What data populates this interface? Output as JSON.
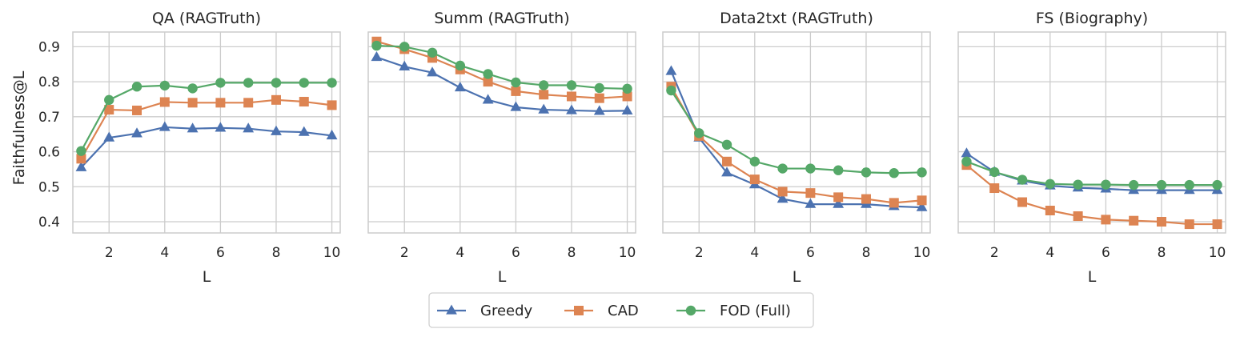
{
  "chart_data": {
    "type": "line",
    "ylabel": "Faithfulness@L",
    "xlabel": "L",
    "x": [
      1,
      2,
      3,
      4,
      5,
      6,
      7,
      8,
      9,
      10
    ],
    "x_ticks": [
      2,
      4,
      6,
      8,
      10
    ],
    "x_tick_labels": [
      "2",
      "4",
      "6",
      "8",
      "10"
    ],
    "y_ticks": [
      0.4,
      0.5,
      0.6,
      0.7,
      0.8,
      0.9
    ],
    "y_tick_labels": [
      "0.4",
      "0.5",
      "0.6",
      "0.7",
      "0.8",
      "0.9"
    ],
    "xlim": [
      0.7,
      10.3
    ],
    "ylim": [
      0.368,
      0.942
    ],
    "grid": true,
    "legend_position": "bottom-center",
    "series_styles": [
      {
        "name": "Greedy",
        "color": "#4c72b0",
        "marker": "triangle"
      },
      {
        "name": "CAD",
        "color": "#dd8452",
        "marker": "square"
      },
      {
        "name": "FOD (Full)",
        "color": "#55a868",
        "marker": "circle"
      }
    ],
    "panels": [
      {
        "title": "QA (RAGTruth)",
        "series": [
          {
            "name": "Greedy",
            "values": [
              0.555,
              0.64,
              0.652,
              0.67,
              0.666,
              0.668,
              0.666,
              0.658,
              0.656,
              0.646
            ]
          },
          {
            "name": "CAD",
            "values": [
              0.58,
              0.72,
              0.718,
              0.742,
              0.74,
              0.74,
              0.74,
              0.748,
              0.743,
              0.733
            ]
          },
          {
            "name": "FOD (Full)",
            "values": [
              0.602,
              0.748,
              0.786,
              0.789,
              0.781,
              0.797,
              0.797,
              0.797,
              0.797,
              0.797
            ]
          }
        ]
      },
      {
        "title": "Summ (RAGTruth)",
        "series": [
          {
            "name": "Greedy",
            "values": [
              0.87,
              0.843,
              0.826,
              0.783,
              0.748,
              0.727,
              0.72,
              0.718,
              0.716,
              0.717
            ]
          },
          {
            "name": "CAD",
            "values": [
              0.915,
              0.893,
              0.868,
              0.835,
              0.8,
              0.773,
              0.763,
              0.758,
              0.753,
              0.758
            ]
          },
          {
            "name": "FOD (Full)",
            "values": [
              0.903,
              0.9,
              0.883,
              0.846,
              0.822,
              0.798,
              0.79,
              0.79,
              0.782,
              0.78
            ]
          }
        ]
      },
      {
        "title": "Data2txt (RAGTruth)",
        "series": [
          {
            "name": "Greedy",
            "values": [
              0.83,
              0.64,
              0.54,
              0.506,
              0.465,
              0.45,
              0.45,
              0.45,
              0.444,
              0.441
            ]
          },
          {
            "name": "CAD",
            "values": [
              0.786,
              0.645,
              0.572,
              0.521,
              0.486,
              0.482,
              0.47,
              0.465,
              0.454,
              0.461
            ]
          },
          {
            "name": "FOD (Full)",
            "values": [
              0.775,
              0.653,
              0.62,
              0.572,
              0.552,
              0.552,
              0.547,
              0.541,
              0.539,
              0.541
            ]
          }
        ]
      },
      {
        "title": "FS (Biography)",
        "series": [
          {
            "name": "Greedy",
            "values": [
              0.595,
              0.542,
              0.517,
              0.503,
              0.497,
              0.494,
              0.49,
              0.49,
              0.49,
              0.49
            ]
          },
          {
            "name": "CAD",
            "values": [
              0.562,
              0.496,
              0.456,
              0.432,
              0.416,
              0.406,
              0.403,
              0.4,
              0.393,
              0.393
            ]
          },
          {
            "name": "FOD (Full)",
            "values": [
              0.572,
              0.542,
              0.52,
              0.508,
              0.506,
              0.506,
              0.505,
              0.505,
              0.505,
              0.505
            ]
          }
        ]
      }
    ]
  }
}
